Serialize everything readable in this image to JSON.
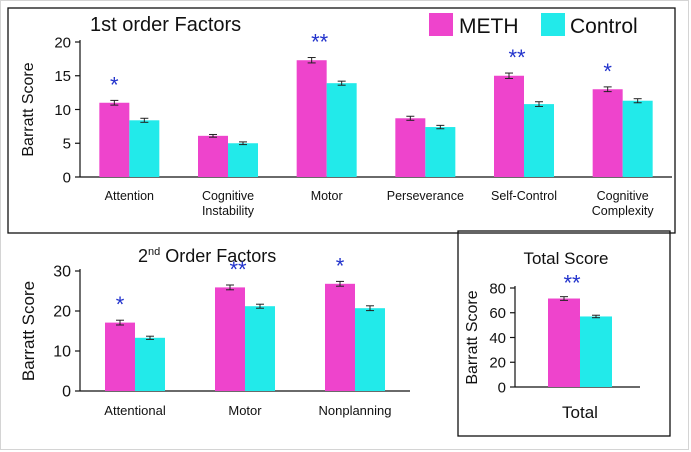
{
  "colors": {
    "meth": "#ee44cc",
    "control": "#22eaea",
    "star": "#2233cc",
    "axis": "#111111"
  },
  "legend": {
    "meth": "METH",
    "control": "Control"
  },
  "chart_data": [
    {
      "type": "bar",
      "title": "1st order Factors",
      "ylabel": "Barratt Score",
      "ylim": [
        0,
        20
      ],
      "yticks": [
        "0",
        "5",
        "10",
        "15",
        "20"
      ],
      "categories": [
        [
          "Attention"
        ],
        [
          "Cognitive",
          "Instability"
        ],
        [
          "Motor"
        ],
        [
          "Perseverance"
        ],
        [
          "Self-Control"
        ],
        [
          "Cognitive",
          "Complexity"
        ]
      ],
      "series": [
        {
          "name": "METH",
          "values": [
            11.0,
            6.1,
            17.3,
            8.7,
            15.0,
            13.0
          ],
          "errors": [
            0.35,
            0.2,
            0.4,
            0.3,
            0.4,
            0.35
          ]
        },
        {
          "name": "Control",
          "values": [
            8.4,
            5.0,
            13.9,
            7.4,
            10.8,
            11.3
          ],
          "errors": [
            0.3,
            0.2,
            0.3,
            0.25,
            0.35,
            0.3
          ]
        }
      ],
      "significance": [
        "*",
        "",
        "**",
        "",
        "**",
        "*"
      ]
    },
    {
      "type": "bar",
      "title_main": "2",
      "title_sup": "nd",
      "title_rest": " Order Factors",
      "ylabel": "Barratt Score",
      "ylim": [
        0,
        30
      ],
      "yticks": [
        "0",
        "10",
        "20",
        "30"
      ],
      "categories": [
        [
          "Attentional"
        ],
        [
          "Motor"
        ],
        [
          "Nonplanning"
        ]
      ],
      "series": [
        {
          "name": "METH",
          "values": [
            17.1,
            25.9,
            26.8
          ],
          "errors": [
            0.6,
            0.6,
            0.6
          ]
        },
        {
          "name": "Control",
          "values": [
            13.3,
            21.2,
            20.7
          ],
          "errors": [
            0.4,
            0.5,
            0.6
          ]
        }
      ],
      "significance": [
        "*",
        "**",
        "*"
      ]
    },
    {
      "type": "bar",
      "title": "Total Score",
      "ylabel": "Barratt Score",
      "xlabel": "Total",
      "ylim": [
        0,
        80
      ],
      "yticks": [
        "0",
        "20",
        "40",
        "60",
        "80"
      ],
      "categories": [
        [
          ""
        ]
      ],
      "series": [
        {
          "name": "METH",
          "values": [
            71.5
          ],
          "errors": [
            1.5
          ]
        },
        {
          "name": "Control",
          "values": [
            57.0
          ],
          "errors": [
            1.0
          ]
        }
      ],
      "significance": [
        "**"
      ]
    }
  ]
}
